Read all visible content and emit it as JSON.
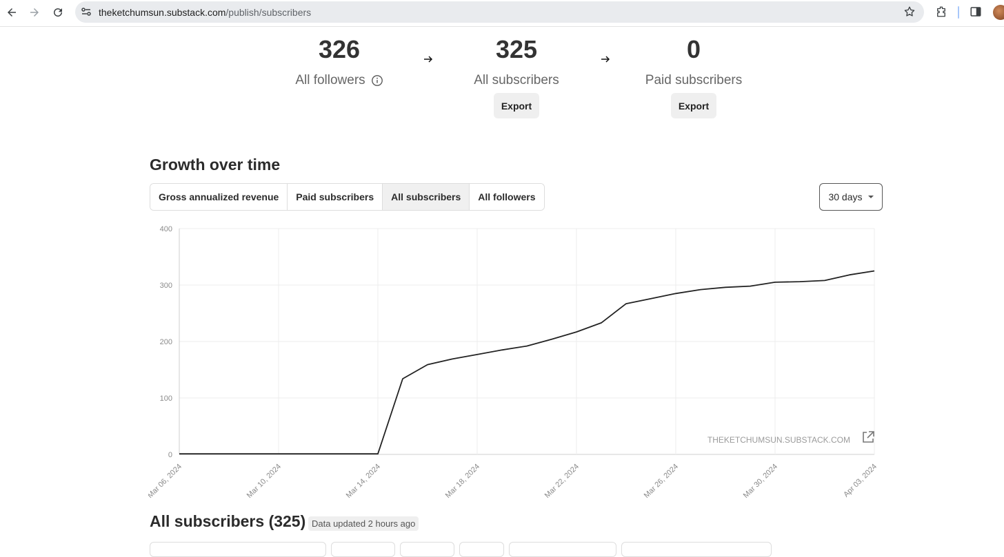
{
  "browser": {
    "url_domain": "theketchumsun.substack.com",
    "url_path": "/publish/subscribers"
  },
  "stats": [
    {
      "value": "326",
      "label": "All followers"
    },
    {
      "value": "325",
      "label": "All subscribers",
      "button": "Export"
    },
    {
      "value": "0",
      "label": "Paid subscribers",
      "button": "Export"
    }
  ],
  "growth": {
    "title": "Growth over time",
    "tabs": [
      "Gross annualized revenue",
      "Paid subscribers",
      "All subscribers",
      "All followers"
    ],
    "active_tab": "All subscribers",
    "range": "30 days",
    "watermark": "THEKETCHUMSUN.SUBSTACK.COM"
  },
  "chart_data": {
    "type": "line",
    "x_ticks": [
      "Mar 06, 2024",
      "Mar 10, 2024",
      "Mar 14, 2024",
      "Mar 18, 2024",
      "Mar 22, 2024",
      "Mar 26, 2024",
      "Mar 30, 2024",
      "Apr 03, 2024"
    ],
    "y_ticks": [
      0,
      100,
      200,
      300,
      400
    ],
    "ylim": [
      0,
      400
    ],
    "grid": true,
    "series": [
      {
        "x": [
          "Mar 06, 2024",
          "Mar 07, 2024",
          "Mar 08, 2024",
          "Mar 09, 2024",
          "Mar 10, 2024",
          "Mar 11, 2024",
          "Mar 12, 2024",
          "Mar 13, 2024",
          "Mar 14, 2024",
          "Mar 15, 2024",
          "Mar 16, 2024",
          "Mar 17, 2024",
          "Mar 18, 2024",
          "Mar 19, 2024",
          "Mar 20, 2024",
          "Mar 21, 2024",
          "Mar 22, 2024",
          "Mar 23, 2024",
          "Mar 24, 2024",
          "Mar 25, 2024",
          "Mar 26, 2024",
          "Mar 27, 2024",
          "Mar 28, 2024",
          "Mar 29, 2024",
          "Mar 30, 2024",
          "Mar 31, 2024",
          "Apr 01, 2024",
          "Apr 02, 2024",
          "Apr 03, 2024"
        ],
        "values": [
          1,
          1,
          1,
          1,
          1,
          1,
          1,
          1,
          1,
          134,
          159,
          169,
          177,
          185,
          192,
          204,
          217,
          233,
          267,
          276,
          285,
          292,
          296,
          298,
          305,
          306,
          308,
          318,
          325
        ]
      }
    ]
  },
  "subscribers": {
    "title": "All subscribers (325)",
    "updated": "Data updated 2 hours ago"
  }
}
